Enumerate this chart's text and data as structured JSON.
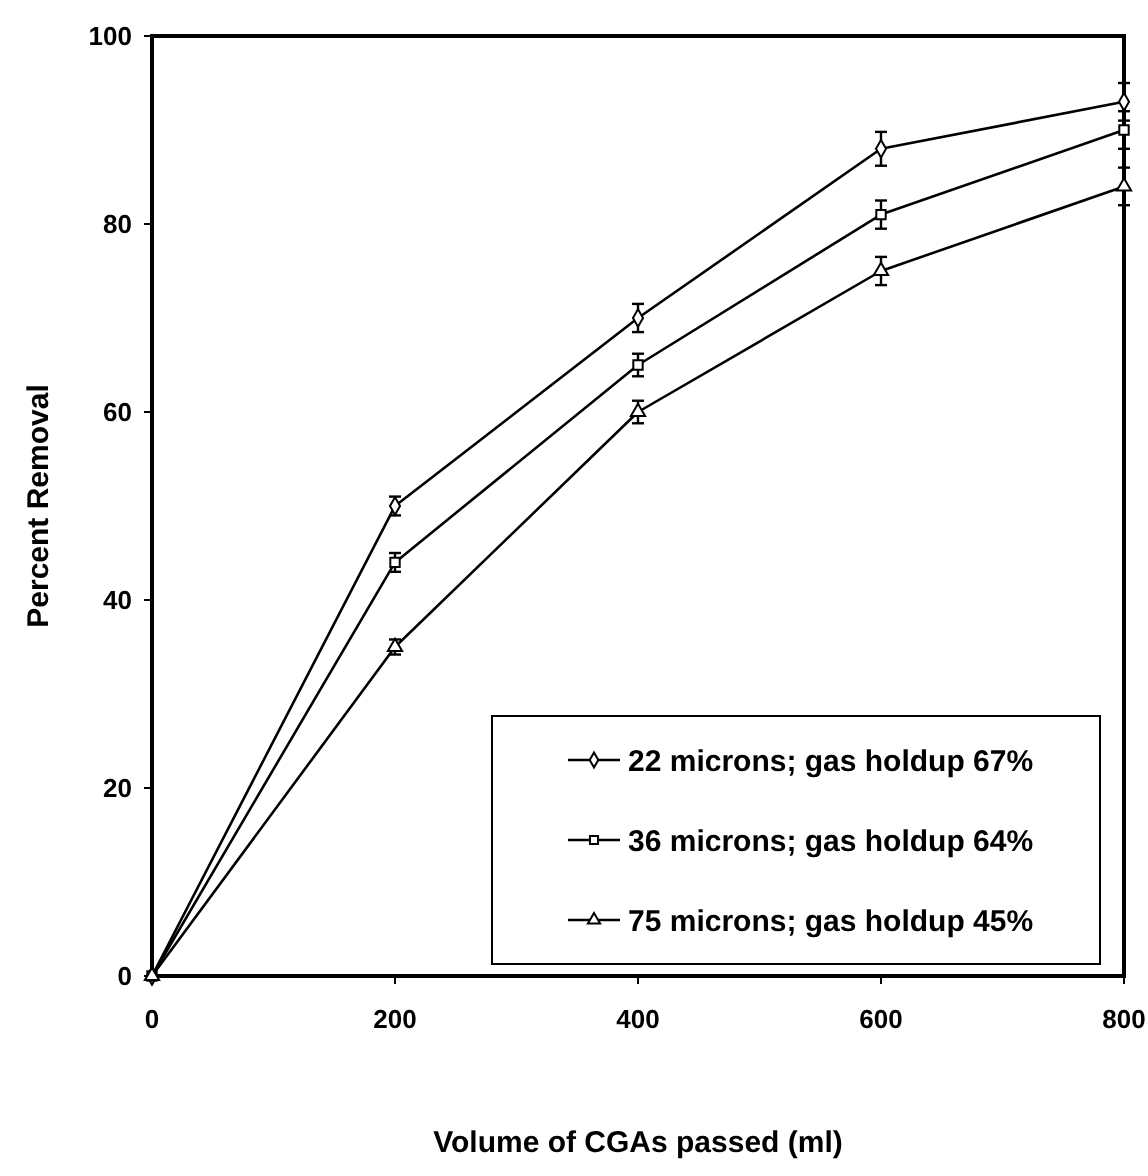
{
  "chart_data": {
    "type": "line",
    "xlabel": "Volume of CGAs passed (ml)",
    "ylabel": "Percent Removal",
    "x": [
      0,
      200,
      400,
      600,
      800
    ],
    "xlim": [
      0,
      800
    ],
    "xticks": [
      0,
      200,
      400,
      600,
      800
    ],
    "ylim": [
      0,
      100
    ],
    "yticks": [
      0,
      20,
      40,
      60,
      80,
      100
    ],
    "grid": false,
    "legend": "bottom right",
    "series": [
      {
        "name": "22 microns; gas holdup 67%",
        "color": "#000000",
        "marker": "diamond",
        "values": [
          0,
          50,
          70,
          88,
          93
        ],
        "errors": [
          null,
          1,
          1.5,
          1.8,
          2
        ]
      },
      {
        "name": "36 microns; gas holdup 64%",
        "color": "#000000",
        "marker": "square",
        "values": [
          0,
          44,
          65,
          81,
          90
        ],
        "errors": [
          null,
          1,
          1.2,
          1.5,
          2
        ]
      },
      {
        "name": "75 microns; gas holdup 45%",
        "color": "#000000",
        "marker": "triangle",
        "values": [
          0,
          35,
          60,
          75,
          84
        ],
        "errors": [
          null,
          0.8,
          1.2,
          1.5,
          2
        ]
      }
    ]
  }
}
